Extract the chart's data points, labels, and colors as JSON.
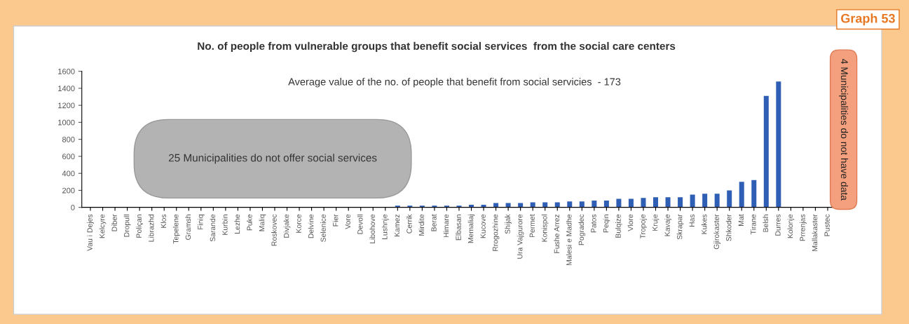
{
  "chart_data": {
    "type": "bar",
    "title": "No. of people from vulnerable groups that benefit social services  from the social care centers",
    "categories": [
      "Vau i Dejes",
      "Kelcyre",
      "Diber",
      "Dropull",
      "Poliçan",
      "Librazhd",
      "Klos",
      "Tepelene",
      "Gramsh",
      "Finiq",
      "Sarande",
      "Kurbin",
      "Lezhe",
      "Puke",
      "Maliq",
      "Roskovec",
      "Divjake",
      "Korce",
      "Delvine",
      "Selenice",
      "Fier",
      "Vore",
      "Devoll",
      "Libohove",
      "Lushnje",
      "Kamez",
      "Cerrik",
      "Mirdite",
      "Berat",
      "Himare",
      "Elbasan",
      "Memaliaj",
      "Kucove",
      "Rrogozhine",
      "Shijak",
      "Ura Vajgurore",
      "Permet",
      "Konispol",
      "Fushe Arrez",
      "Malesi e Madhe",
      "Pogradec",
      "Patos",
      "Peqin",
      "Bulqize",
      "Vlore",
      "Tropoje",
      "Kruje",
      "Kavaje",
      "Skrapar",
      "Has",
      "Kukes",
      "Gjirokaster",
      "Shkoder",
      "Mat",
      "Tirane",
      "Belsh",
      "Durres",
      "Kolonje",
      "Prrenjas",
      "Mallakaster",
      "Pustec"
    ],
    "values": [
      0,
      0,
      0,
      0,
      0,
      0,
      0,
      0,
      0,
      0,
      0,
      0,
      0,
      0,
      0,
      0,
      0,
      0,
      0,
      0,
      0,
      0,
      0,
      0,
      0,
      20,
      20,
      20,
      20,
      20,
      20,
      30,
      30,
      50,
      50,
      50,
      60,
      60,
      60,
      70,
      70,
      80,
      80,
      100,
      100,
      110,
      120,
      120,
      120,
      150,
      160,
      160,
      200,
      300,
      320,
      1310,
      1480,
      null,
      null,
      null,
      null
    ],
    "color": "#2e5fb5",
    "ylim": [
      0,
      1600
    ],
    "yticks": [
      0,
      200,
      400,
      600,
      800,
      1000,
      1200,
      1400,
      1600
    ],
    "grid": false,
    "legend": false,
    "annotations": [
      "Graph 53",
      "Average value of the no. of people that benefit from social servicies  - 173",
      "25 Municipalities do not offer social services",
      "4 Municipalities do not have data"
    ]
  }
}
